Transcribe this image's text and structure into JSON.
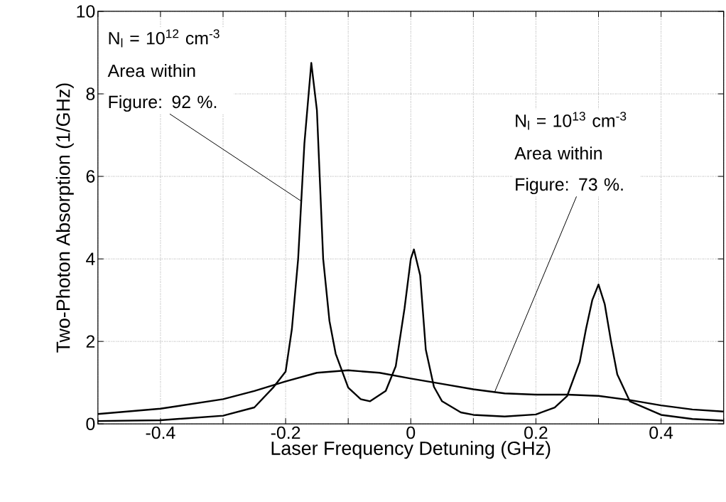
{
  "chart_data": {
    "type": "line",
    "xlabel": "Laser Frequency Detuning (GHz)",
    "ylabel": "Two-Photon Absorption (1/GHz)",
    "xlim": [
      -0.5,
      0.5
    ],
    "ylim": [
      0,
      10
    ],
    "xticks": [
      {
        "value": -0.5,
        "label": null
      },
      -0.4,
      {
        "value": -0.3,
        "label": null
      },
      -0.2,
      {
        "value": -0.1,
        "label": null
      },
      0,
      {
        "value": 0.1,
        "label": null
      },
      0.2,
      {
        "value": 0.3,
        "label": null
      },
      0.4,
      {
        "value": 0.5,
        "label": null
      }
    ],
    "yticks": [
      0,
      2,
      4,
      6,
      8,
      10
    ],
    "grid": true,
    "marker": "none",
    "line_style": "solid",
    "series": [
      {
        "color": "#000000",
        "x": [
          -0.5,
          -0.4,
          -0.3,
          -0.25,
          -0.22,
          -0.2,
          -0.19,
          -0.18,
          -0.17,
          -0.159,
          -0.15,
          -0.14,
          -0.13,
          -0.12,
          -0.1,
          -0.08,
          -0.065,
          -0.04,
          -0.024,
          -0.01,
          0.0,
          0.005,
          0.015,
          0.024,
          0.037,
          0.05,
          0.08,
          0.1,
          0.15,
          0.2,
          0.23,
          0.25,
          0.27,
          0.28,
          0.29,
          0.3,
          0.31,
          0.32,
          0.33,
          0.35,
          0.4,
          0.45,
          0.5
        ],
        "values": [
          0.07,
          0.09,
          0.2,
          0.4,
          0.88,
          1.27,
          2.3,
          4.0,
          6.8,
          8.75,
          7.6,
          4.0,
          2.5,
          1.7,
          0.88,
          0.6,
          0.55,
          0.8,
          1.4,
          2.8,
          4.0,
          4.23,
          3.6,
          1.8,
          0.9,
          0.55,
          0.28,
          0.22,
          0.18,
          0.23,
          0.4,
          0.68,
          1.5,
          2.3,
          3.0,
          3.38,
          2.9,
          2.0,
          1.2,
          0.55,
          0.22,
          0.12,
          0.08
        ]
      },
      {
        "color": "#000000",
        "x": [
          -0.5,
          -0.4,
          -0.3,
          -0.25,
          -0.2,
          -0.15,
          -0.1,
          -0.05,
          0.0,
          0.05,
          0.1,
          0.15,
          0.2,
          0.25,
          0.3,
          0.35,
          0.4,
          0.45,
          0.5
        ],
        "values": [
          0.24,
          0.37,
          0.6,
          0.8,
          1.03,
          1.24,
          1.3,
          1.24,
          1.1,
          0.97,
          0.84,
          0.74,
          0.71,
          0.71,
          0.68,
          0.58,
          0.45,
          0.35,
          0.3
        ]
      }
    ],
    "annotations": [
      "N$_{l}$ = 10$^{12}$ cm$^{-3}$",
      {
        "text": "Area within Figure: 92 %.",
        "x": -0.175,
        "y": 5.4
      },
      "N$_{l}$ = 10$^{13}$ cm$^{-3}$",
      {
        "text": "Area within Figure: 73 %.",
        "x": 0.134,
        "y": 0.772
      }
    ]
  }
}
